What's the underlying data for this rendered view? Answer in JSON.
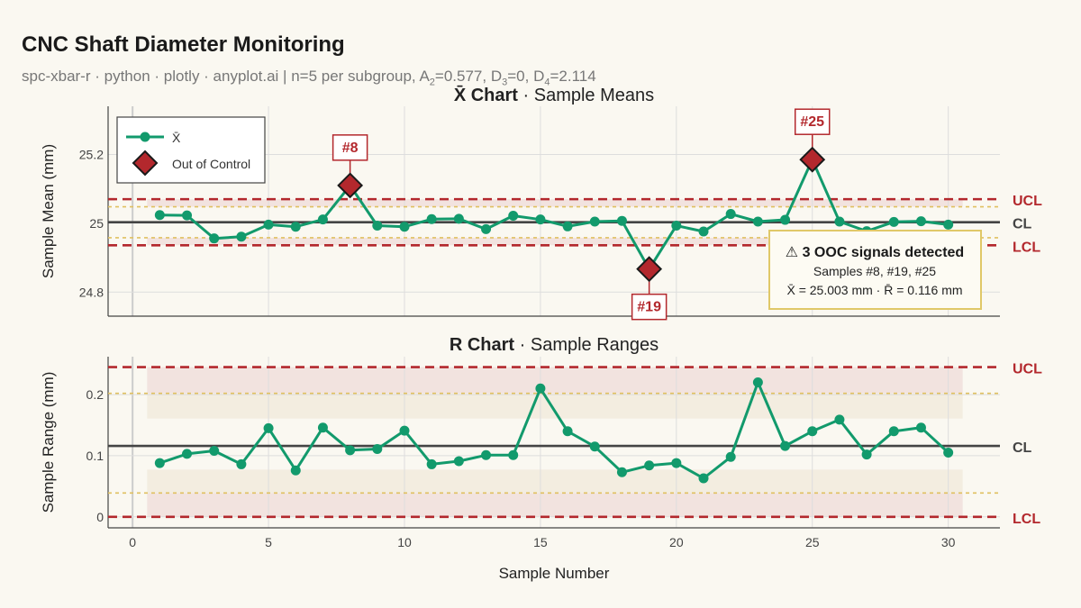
{
  "title": "CNC Shaft Diameter Monitoring",
  "subtitle": {
    "prefix": "spc-xbar-r · python · plotly · anyplot.ai  |  n=5 per subgroup, A",
    "a2": "=0.577, D",
    "d3": "=0, D",
    "d4": "=2.114"
  },
  "colors": {
    "line": "#129a6c",
    "ooc": "#b3282d",
    "center": "#444444",
    "warning": "#e0c060",
    "background": "#faf8f1"
  },
  "xlabel": "Sample Number",
  "chart_data": [
    {
      "type": "line",
      "title_bold": "X̄ Chart",
      "title_rest": "· Sample Means",
      "ylabel": "Sample Mean (mm)",
      "x": [
        1,
        2,
        3,
        4,
        5,
        6,
        7,
        8,
        9,
        10,
        11,
        12,
        13,
        14,
        15,
        16,
        17,
        18,
        19,
        20,
        21,
        22,
        23,
        24,
        25,
        26,
        27,
        28,
        29,
        30
      ],
      "series": [
        {
          "name": "X̄",
          "values": [
            25.024,
            25.023,
            24.956,
            24.961,
            24.996,
            24.99,
            25.011,
            25.11,
            24.993,
            24.99,
            25.012,
            25.013,
            24.983,
            25.022,
            25.011,
            24.991,
            25.005,
            25.007,
            24.867,
            24.993,
            24.976,
            25.027,
            25.005,
            25.01,
            25.185,
            25.005,
            24.977,
            25.004,
            25.006,
            24.996
          ]
        }
      ],
      "limits": {
        "UCL": 25.07,
        "CL": 25.003,
        "LCL": 24.936
      },
      "warning_limits": [
        25.048,
        24.958
      ],
      "ylim": [
        24.73,
        25.34
      ],
      "xlim": [
        -0.9,
        31.9
      ],
      "yticks": [
        24.8,
        25,
        25.2
      ],
      "ytick_labels": [
        "24.8",
        "25",
        "25.2"
      ],
      "xticks": [
        0,
        5,
        10,
        15,
        20,
        25,
        30
      ],
      "ooc": [
        {
          "x": 8,
          "y": 25.11,
          "label": "#8"
        },
        {
          "x": 19,
          "y": 24.867,
          "label": "#19"
        },
        {
          "x": 25,
          "y": 25.185,
          "label": "#25"
        }
      ],
      "limit_labels": {
        "UCL": "UCL",
        "CL": "CL",
        "LCL": "LCL"
      },
      "legend": {
        "placement": "top-left",
        "entries": [
          "X̄",
          "Out of Control"
        ]
      },
      "annotation": {
        "title": "⚠ 3 OOC signals detected",
        "line2": "Samples #8, #19, #25",
        "line3": "X̄ = 25.003 mm · R̄ = 0.116 mm"
      }
    },
    {
      "type": "line",
      "title_bold": "R Chart",
      "title_rest": "· Sample Ranges",
      "ylabel": "Sample Range (mm)",
      "x": [
        1,
        2,
        3,
        4,
        5,
        6,
        7,
        8,
        9,
        10,
        11,
        12,
        13,
        14,
        15,
        16,
        17,
        18,
        19,
        20,
        21,
        22,
        23,
        24,
        25,
        26,
        27,
        28,
        29,
        30
      ],
      "series": [
        {
          "name": "R",
          "values": [
            0.088,
            0.103,
            0.108,
            0.086,
            0.145,
            0.076,
            0.146,
            0.109,
            0.111,
            0.141,
            0.086,
            0.091,
            0.101,
            0.101,
            0.21,
            0.14,
            0.115,
            0.073,
            0.084,
            0.088,
            0.063,
            0.098,
            0.22,
            0.116,
            0.14,
            0.159,
            0.102,
            0.14,
            0.146,
            0.105
          ]
        }
      ],
      "limits": {
        "UCL": 0.245,
        "CL": 0.116,
        "LCL": 0
      },
      "warning_limits": [
        0.202,
        0.039
      ],
      "ylim": [
        -0.018,
        0.262
      ],
      "xlim": [
        -0.9,
        31.9
      ],
      "yticks": [
        0,
        0.1,
        0.2
      ],
      "ytick_labels": [
        "0",
        "0.1",
        "0.2"
      ],
      "xticks": [
        0,
        5,
        10,
        15,
        20,
        25,
        30
      ],
      "limit_labels": {
        "UCL": "UCL",
        "CL": "CL",
        "LCL": "LCL"
      }
    }
  ]
}
